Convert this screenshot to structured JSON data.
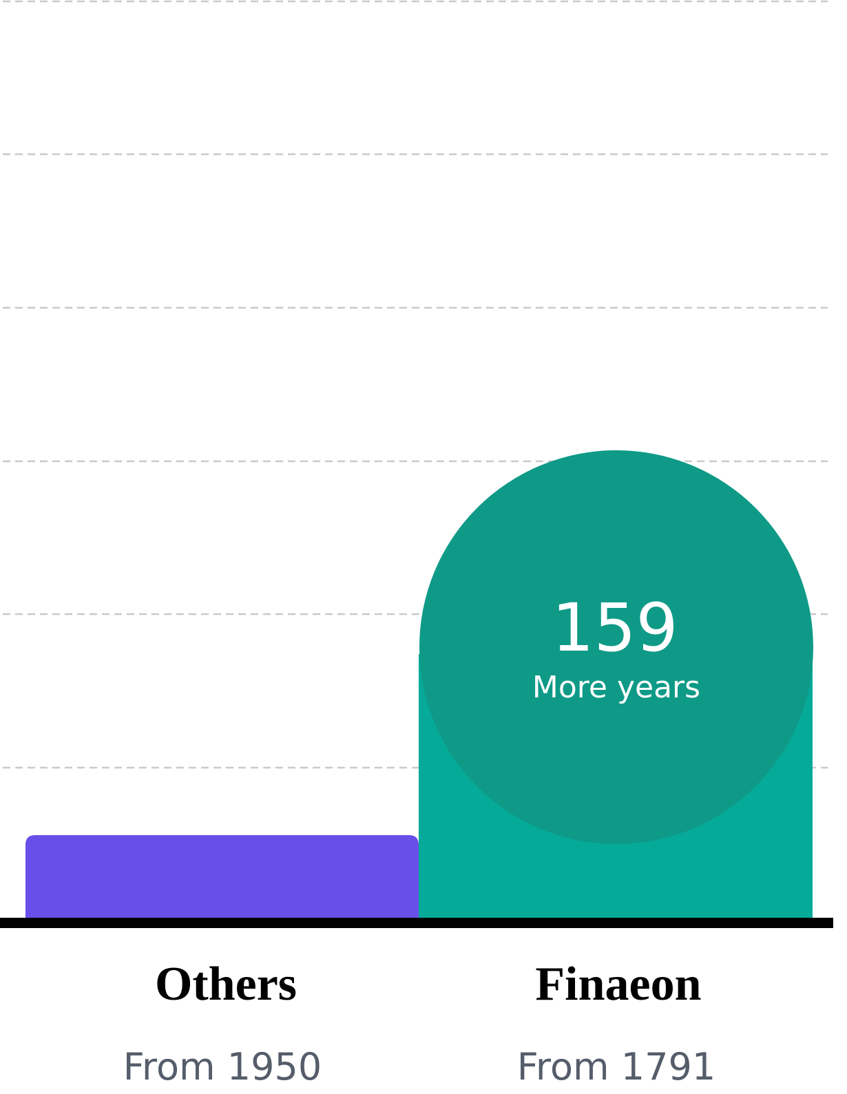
{
  "bars": [
    {
      "label": "Others",
      "caption": "From 1950"
    },
    {
      "label": "Finaeon",
      "caption": "From 1791"
    }
  ],
  "highlight": {
    "value": 159,
    "caption": "More years"
  }
}
